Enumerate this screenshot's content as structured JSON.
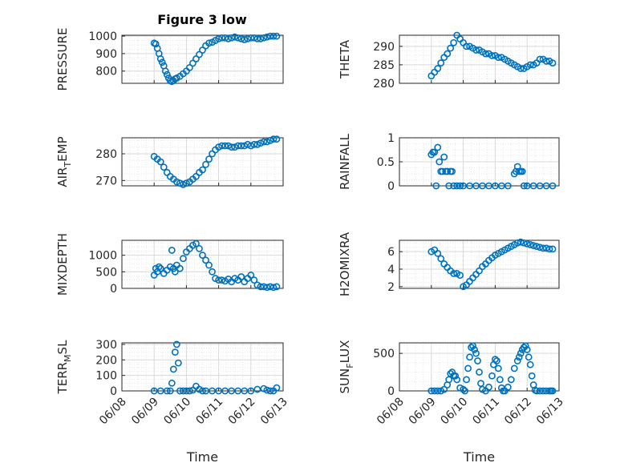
{
  "title": "Figure 3 low",
  "chart_data": [
    {
      "id": "pressure",
      "type": "scatter",
      "ylabel": "PRESSURE",
      "yticks": [
        "800",
        "900",
        "1000"
      ],
      "ylim": [
        730,
        1005
      ],
      "x": [
        1.0,
        1.05,
        1.1,
        1.15,
        1.2,
        1.25,
        1.3,
        1.35,
        1.4,
        1.45,
        1.5,
        1.55,
        1.6,
        1.65,
        1.7,
        1.8,
        1.9,
        2.0,
        2.1,
        2.2,
        2.3,
        2.4,
        2.5,
        2.6,
        2.7,
        2.8,
        2.9,
        3.0,
        3.1,
        3.2,
        3.3,
        3.4,
        3.5,
        3.6,
        3.7,
        3.8,
        3.9,
        4.0,
        4.1,
        4.2,
        4.3,
        4.4,
        4.5,
        4.6,
        4.7,
        4.8
      ],
      "y": [
        960,
        955,
        930,
        900,
        870,
        850,
        830,
        800,
        780,
        760,
        745,
        740,
        745,
        755,
        760,
        770,
        785,
        800,
        820,
        845,
        870,
        895,
        920,
        945,
        960,
        965,
        975,
        985,
        990,
        990,
        985,
        990,
        995,
        990,
        985,
        980,
        985,
        990,
        990,
        985,
        985,
        990,
        995,
        1000,
        1000,
        1000
      ]
    },
    {
      "id": "theta",
      "type": "scatter",
      "ylabel": "THETA",
      "yticks": [
        "280",
        "285",
        "290"
      ],
      "ylim": [
        280,
        293
      ],
      "x": [
        1.0,
        1.1,
        1.2,
        1.3,
        1.4,
        1.5,
        1.6,
        1.7,
        1.8,
        1.9,
        2.0,
        2.1,
        2.2,
        2.3,
        2.4,
        2.5,
        2.6,
        2.7,
        2.8,
        2.9,
        3.0,
        3.1,
        3.2,
        3.3,
        3.4,
        3.5,
        3.6,
        3.7,
        3.8,
        3.9,
        4.0,
        4.1,
        4.2,
        4.3,
        4.4,
        4.5,
        4.6,
        4.7,
        4.8
      ],
      "y": [
        282,
        283,
        284,
        285.5,
        287,
        288,
        289.5,
        291,
        293,
        292,
        291,
        290,
        290,
        289.5,
        289,
        289,
        288.5,
        288,
        288,
        287.5,
        287.5,
        287,
        287,
        286.5,
        286,
        285.5,
        285,
        284.5,
        284,
        284,
        284.5,
        285,
        285,
        285.5,
        286.5,
        286.5,
        286,
        286,
        285.5
      ]
    },
    {
      "id": "air_temp",
      "type": "scatter",
      "ylabel_main": "AIR",
      "ylabel_sub": "T",
      "ylabel_rest": "EMP",
      "yticks": [
        "270",
        "280"
      ],
      "ylim": [
        268,
        286
      ],
      "x": [
        1.0,
        1.1,
        1.2,
        1.3,
        1.4,
        1.5,
        1.6,
        1.7,
        1.8,
        1.9,
        2.0,
        2.1,
        2.2,
        2.3,
        2.4,
        2.5,
        2.6,
        2.7,
        2.8,
        2.9,
        3.0,
        3.1,
        3.2,
        3.3,
        3.4,
        3.5,
        3.6,
        3.7,
        3.8,
        3.9,
        4.0,
        4.1,
        4.2,
        4.3,
        4.4,
        4.5,
        4.6,
        4.7,
        4.8
      ],
      "y": [
        279,
        278,
        277,
        275,
        273,
        271.5,
        270.5,
        269.5,
        269,
        268.5,
        269,
        269.5,
        270.5,
        271.5,
        273,
        274,
        276,
        278,
        280,
        281.5,
        282.5,
        283,
        283,
        283,
        282.5,
        282.5,
        283,
        283,
        283,
        283.5,
        283,
        283.5,
        283.5,
        284,
        284.5,
        284.5,
        285,
        285.5,
        285.5
      ]
    },
    {
      "id": "rainfall",
      "type": "scatter",
      "ylabel": "RAINFALL",
      "yticks": [
        "0",
        "0.5",
        "1"
      ],
      "ylim": [
        0,
        1
      ],
      "x": [
        1.0,
        1.05,
        1.1,
        1.15,
        1.2,
        1.25,
        1.3,
        1.35,
        1.4,
        1.45,
        1.5,
        1.55,
        1.6,
        1.65,
        1.7,
        1.8,
        1.9,
        2.0,
        2.2,
        2.4,
        2.6,
        2.8,
        3.0,
        3.2,
        3.4,
        3.6,
        3.65,
        3.7,
        3.75,
        3.8,
        3.85,
        3.9,
        4.0,
        4.2,
        4.4,
        4.6,
        4.8
      ],
      "y": [
        0.65,
        0.7,
        0.7,
        0,
        0.8,
        0.5,
        0.3,
        0.3,
        0.6,
        0.3,
        0.3,
        0,
        0.3,
        0.3,
        0,
        0,
        0,
        0,
        0,
        0,
        0,
        0,
        0,
        0,
        0,
        0.25,
        0.3,
        0.4,
        0.3,
        0.3,
        0.3,
        0,
        0,
        0,
        0,
        0,
        0
      ]
    },
    {
      "id": "mixdepth",
      "type": "scatter",
      "ylabel": "MIXDEPTH",
      "yticks": [
        "0",
        "500",
        "1000"
      ],
      "ylim": [
        0,
        1450
      ],
      "x": [
        1.0,
        1.05,
        1.1,
        1.15,
        1.2,
        1.3,
        1.4,
        1.5,
        1.55,
        1.6,
        1.65,
        1.7,
        1.8,
        1.9,
        2.0,
        2.1,
        2.2,
        2.3,
        2.4,
        2.5,
        2.6,
        2.7,
        2.8,
        2.9,
        3.0,
        3.1,
        3.2,
        3.3,
        3.4,
        3.5,
        3.6,
        3.7,
        3.8,
        3.9,
        4.0,
        4.1,
        4.2,
        4.3,
        4.4,
        4.5,
        4.6,
        4.7,
        4.8
      ],
      "y": [
        400,
        600,
        500,
        650,
        600,
        450,
        550,
        650,
        1150,
        600,
        500,
        700,
        600,
        900,
        1100,
        1200,
        1300,
        1350,
        1200,
        1000,
        850,
        700,
        500,
        300,
        250,
        250,
        220,
        280,
        200,
        300,
        250,
        350,
        200,
        300,
        400,
        250,
        100,
        50,
        50,
        30,
        50,
        30,
        50
      ]
    },
    {
      "id": "h2omixra",
      "type": "scatter",
      "ylabel": "H2OMIXRA",
      "yticks": [
        "2",
        "4",
        "6"
      ],
      "ylim": [
        1.8,
        7.3
      ],
      "x": [
        1.0,
        1.1,
        1.2,
        1.3,
        1.4,
        1.5,
        1.6,
        1.7,
        1.8,
        1.9,
        2.0,
        2.1,
        2.2,
        2.3,
        2.4,
        2.5,
        2.6,
        2.7,
        2.8,
        2.9,
        3.0,
        3.1,
        3.2,
        3.3,
        3.4,
        3.5,
        3.6,
        3.7,
        3.8,
        3.9,
        4.0,
        4.1,
        4.2,
        4.3,
        4.4,
        4.5,
        4.6,
        4.7,
        4.8
      ],
      "y": [
        6,
        6.2,
        5.8,
        5.2,
        4.6,
        4.2,
        3.8,
        3.5,
        3.5,
        3.3,
        2,
        2.2,
        2.6,
        3,
        3.4,
        3.8,
        4.3,
        4.6,
        5,
        5.3,
        5.6,
        5.8,
        6,
        6.2,
        6.4,
        6.6,
        6.8,
        7,
        7.1,
        7,
        6.9,
        6.8,
        6.7,
        6.6,
        6.5,
        6.4,
        6.4,
        6.3,
        6.3
      ]
    },
    {
      "id": "terr_msl",
      "type": "scatter",
      "ylabel_main": "TERR",
      "ylabel_sub": "M",
      "ylabel_rest": "SL",
      "yticks": [
        "0",
        "100",
        "200",
        "300"
      ],
      "ylim": [
        0,
        310
      ],
      "x": [
        1.0,
        1.2,
        1.4,
        1.5,
        1.55,
        1.6,
        1.65,
        1.7,
        1.75,
        1.8,
        1.9,
        2.0,
        2.1,
        2.2,
        2.3,
        2.4,
        2.5,
        2.6,
        2.8,
        3.0,
        3.2,
        3.4,
        3.6,
        3.8,
        4.0,
        4.2,
        4.4,
        4.5,
        4.6,
        4.7,
        4.8
      ],
      "y": [
        0,
        0,
        0,
        0,
        50,
        140,
        250,
        300,
        180,
        0,
        0,
        0,
        0,
        5,
        30,
        10,
        0,
        0,
        0,
        0,
        0,
        0,
        0,
        0,
        0,
        10,
        15,
        5,
        0,
        0,
        20
      ]
    },
    {
      "id": "sun_flux",
      "type": "scatter",
      "ylabel_main": "SUN",
      "ylabel_sub": "F",
      "ylabel_rest": "LUX",
      "yticks": [
        "0",
        "500"
      ],
      "ylim": [
        0,
        640
      ],
      "x": [
        1.0,
        1.1,
        1.2,
        1.3,
        1.4,
        1.5,
        1.55,
        1.6,
        1.65,
        1.7,
        1.75,
        1.8,
        1.9,
        2.0,
        2.05,
        2.1,
        2.15,
        2.2,
        2.25,
        2.3,
        2.35,
        2.4,
        2.45,
        2.5,
        2.55,
        2.6,
        2.7,
        2.8,
        2.9,
        2.95,
        3.0,
        3.05,
        3.1,
        3.15,
        3.2,
        3.25,
        3.3,
        3.4,
        3.5,
        3.6,
        3.7,
        3.75,
        3.8,
        3.85,
        3.9,
        3.95,
        4.0,
        4.05,
        4.1,
        4.15,
        4.2,
        4.25,
        4.3,
        4.4,
        4.5,
        4.6,
        4.7,
        4.75,
        4.8
      ],
      "y": [
        0,
        0,
        0,
        0,
        20,
        80,
        150,
        230,
        250,
        200,
        200,
        150,
        40,
        20,
        0,
        150,
        300,
        450,
        580,
        600,
        550,
        500,
        400,
        250,
        100,
        20,
        0,
        50,
        200,
        350,
        420,
        400,
        300,
        150,
        40,
        0,
        0,
        50,
        150,
        300,
        400,
        450,
        500,
        550,
        580,
        600,
        550,
        450,
        350,
        200,
        80,
        10,
        0,
        0,
        0,
        0,
        0,
        0,
        0
      ]
    }
  ],
  "xticks": [
    "06/08",
    "06/09",
    "06/10",
    "06/11",
    "06/12",
    "06/13"
  ],
  "xlim": [
    0,
    5
  ],
  "xlabel": "Time",
  "colors": {
    "marker": "#0072bd",
    "axis": "#262626",
    "grid": "#d9d9d9"
  }
}
